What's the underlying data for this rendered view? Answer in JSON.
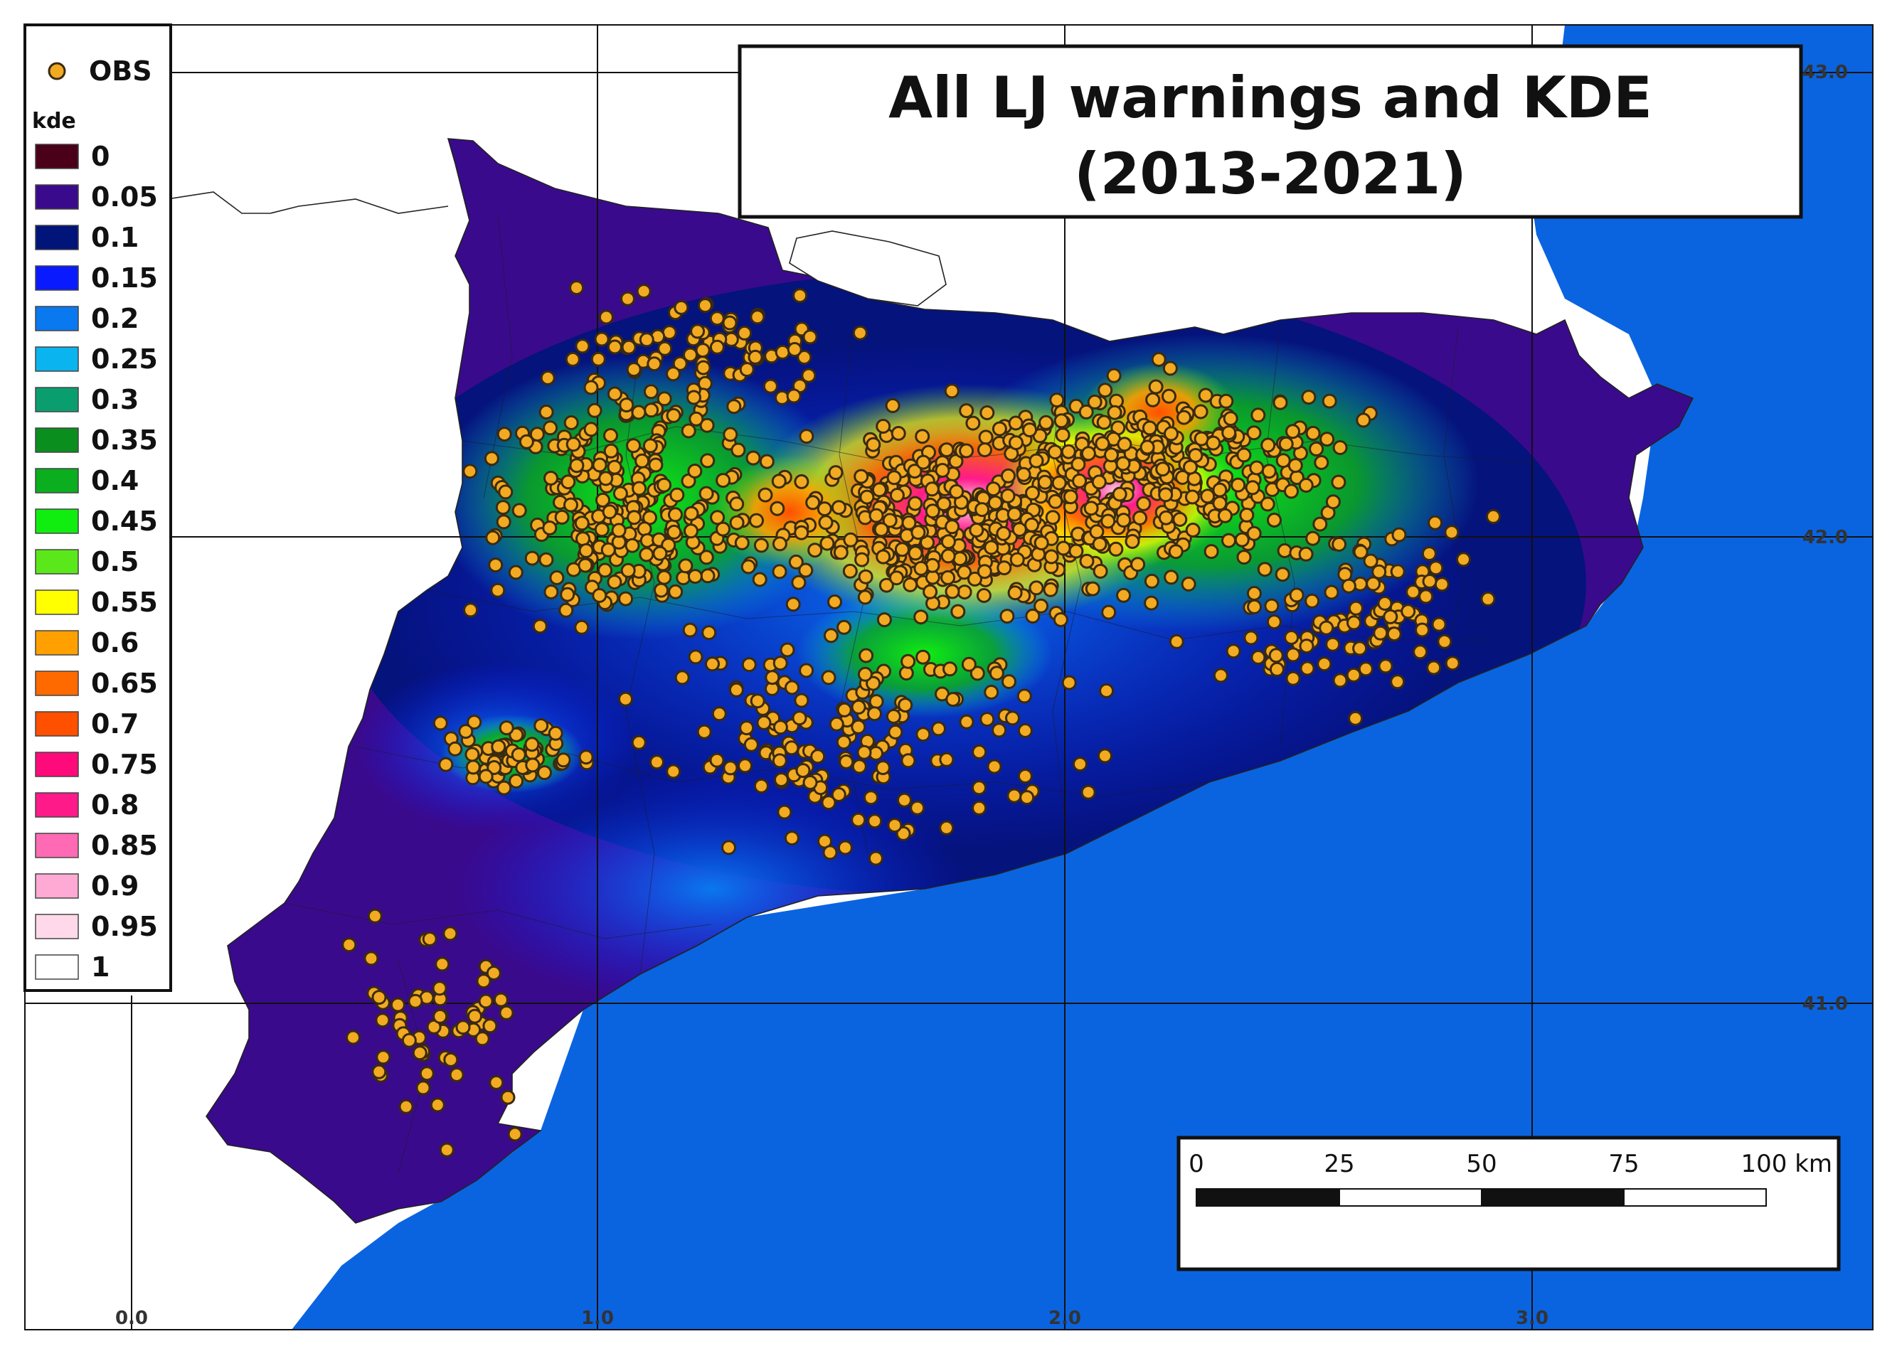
{
  "title": {
    "line1": "All LJ warnings and KDE",
    "line2": "(2013-2021)"
  },
  "legend": {
    "obs_label": "OBS",
    "kde_label": "kde",
    "classes": [
      {
        "label": "0",
        "color": "#4a0018"
      },
      {
        "label": "0.05",
        "color": "#3a0a8c"
      },
      {
        "label": "0.1",
        "color": "#00147a"
      },
      {
        "label": "0.15",
        "color": "#0a1aff"
      },
      {
        "label": "0.2",
        "color": "#0a78ee"
      },
      {
        "label": "0.25",
        "color": "#0ab4ee"
      },
      {
        "label": "0.3",
        "color": "#0a9e6e"
      },
      {
        "label": "0.35",
        "color": "#0a8e1e"
      },
      {
        "label": "0.4",
        "color": "#0aae1e"
      },
      {
        "label": "0.45",
        "color": "#10ee10"
      },
      {
        "label": "0.5",
        "color": "#5ae81a"
      },
      {
        "label": "0.55",
        "color": "#ffff00"
      },
      {
        "label": "0.6",
        "color": "#ffa000"
      },
      {
        "label": "0.65",
        "color": "#ff6a00"
      },
      {
        "label": "0.7",
        "color": "#ff5000"
      },
      {
        "label": "0.75",
        "color": "#ff0a7a"
      },
      {
        "label": "0.8",
        "color": "#ff1a8a"
      },
      {
        "label": "0.85",
        "color": "#ff6ab4"
      },
      {
        "label": "0.9",
        "color": "#ffaad4"
      },
      {
        "label": "0.95",
        "color": "#ffd8ea"
      },
      {
        "label": "1",
        "color": "#ffffff"
      }
    ]
  },
  "grid": {
    "lon_labels": [
      "0.0",
      "1.0",
      "2.0",
      "3.0"
    ],
    "lat_labels": [
      "43.0",
      "42.0",
      "41.0"
    ]
  },
  "scalebar": {
    "ticks": [
      "0",
      "25",
      "50",
      "75",
      "100 km"
    ]
  },
  "colors": {
    "sea": "#0a64e0",
    "land_outside": "#ffffff",
    "obs_fill": "#f2aa22",
    "obs_stroke": "#3a2a10",
    "grid_line": "#111111"
  },
  "icons": {
    "obs_marker": "orange-circle-marker"
  }
}
